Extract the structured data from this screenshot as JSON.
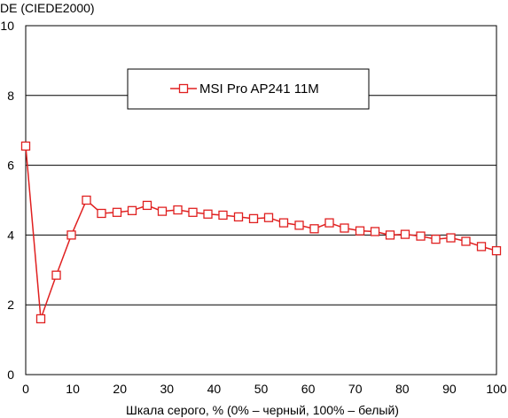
{
  "chart_data": {
    "type": "line",
    "ylabel": "DE (CIEDE2000)",
    "xlabel": "Шкала серого, % (0% – черный, 100% – белый)",
    "xlim": [
      0,
      100
    ],
    "ylim": [
      0,
      10
    ],
    "xticks": [
      0,
      10,
      20,
      30,
      40,
      50,
      60,
      70,
      80,
      90,
      100
    ],
    "yticks": [
      0,
      2,
      4,
      6,
      8,
      10
    ],
    "grid": "horizontal",
    "legend_position": "top-center",
    "series": [
      {
        "name": "MSI Pro AP241 11M",
        "color": "#e02020",
        "marker": "open-square",
        "x": [
          0,
          3.2,
          6.5,
          9.7,
          12.9,
          16.1,
          19.4,
          22.6,
          25.8,
          29.0,
          32.3,
          35.5,
          38.7,
          41.9,
          45.2,
          48.4,
          51.6,
          54.8,
          58.1,
          61.3,
          64.5,
          67.7,
          71.0,
          74.2,
          77.4,
          80.6,
          83.9,
          87.1,
          90.3,
          93.5,
          96.8,
          100
        ],
        "y": [
          6.55,
          1.6,
          2.85,
          4.0,
          5.0,
          4.62,
          4.65,
          4.7,
          4.85,
          4.68,
          4.72,
          4.65,
          4.6,
          4.57,
          4.52,
          4.47,
          4.5,
          4.35,
          4.28,
          4.18,
          4.35,
          4.2,
          4.12,
          4.1,
          4.0,
          4.02,
          3.97,
          3.88,
          3.92,
          3.82,
          3.67,
          3.55
        ]
      }
    ]
  }
}
